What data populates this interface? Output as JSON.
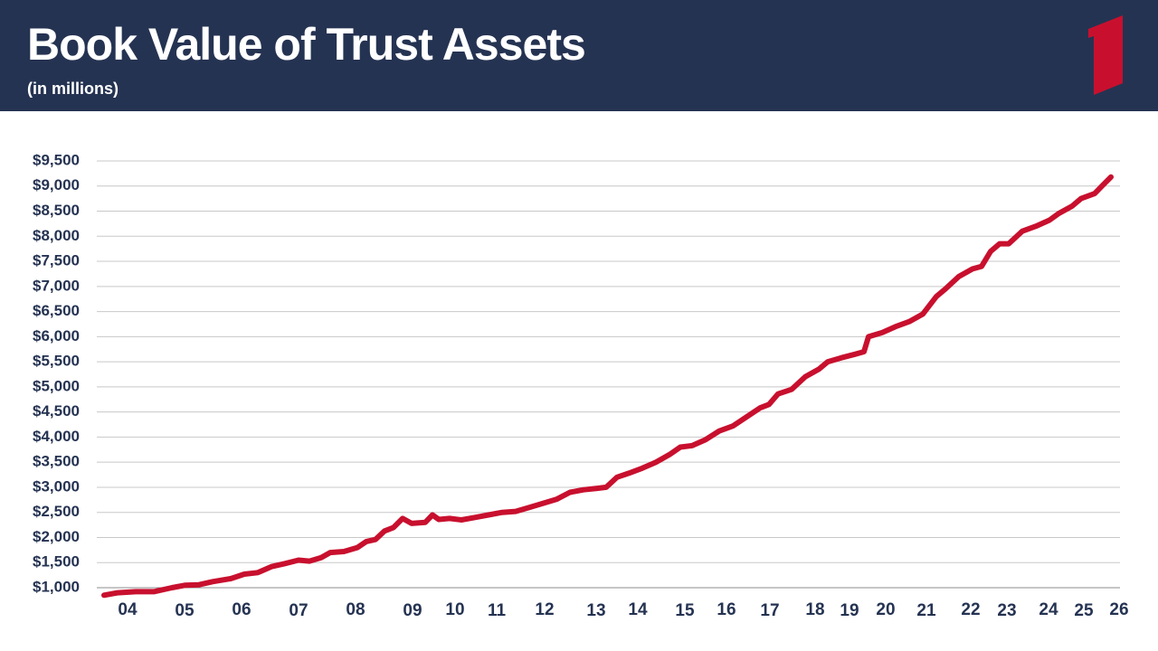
{
  "chart_data": {
    "type": "line",
    "title": "Book Value of Trust Assets",
    "subtitle": "(in millions)",
    "xlim": [
      0,
      1131
    ],
    "xticks": [
      {
        "value": 34,
        "label": "04"
      },
      {
        "value": 97,
        "label": "05"
      },
      {
        "value": 160,
        "label": "06"
      },
      {
        "value": 223,
        "label": "07"
      },
      {
        "value": 286,
        "label": "08"
      },
      {
        "value": 349,
        "label": "09"
      },
      {
        "value": 396,
        "label": "10"
      },
      {
        "value": 442,
        "label": "11"
      },
      {
        "value": 495,
        "label": "12"
      },
      {
        "value": 552,
        "label": "13"
      },
      {
        "value": 598,
        "label": "14"
      },
      {
        "value": 650,
        "label": "15"
      },
      {
        "value": 696,
        "label": "16"
      },
      {
        "value": 744,
        "label": "17"
      },
      {
        "value": 794,
        "label": "18"
      },
      {
        "value": 832,
        "label": "19"
      },
      {
        "value": 872,
        "label": "20"
      },
      {
        "value": 917,
        "label": "21"
      },
      {
        "value": 966,
        "label": "22"
      },
      {
        "value": 1006,
        "label": "23"
      },
      {
        "value": 1052,
        "label": "24"
      },
      {
        "value": 1091,
        "label": "25"
      },
      {
        "value": 1130,
        "label": "26"
      }
    ],
    "ylim": [
      1000,
      9500
    ],
    "yticks": [
      {
        "value": 1000,
        "label": "$1,000"
      },
      {
        "value": 1500,
        "label": "$1,500"
      },
      {
        "value": 2000,
        "label": "$2,000"
      },
      {
        "value": 2500,
        "label": "$2,500"
      },
      {
        "value": 3000,
        "label": "$3,000"
      },
      {
        "value": 3500,
        "label": "$3,500"
      },
      {
        "value": 4000,
        "label": "$4,000"
      },
      {
        "value": 4500,
        "label": "$4,500"
      },
      {
        "value": 5000,
        "label": "$5,000"
      },
      {
        "value": 5500,
        "label": "$5,500"
      },
      {
        "value": 6000,
        "label": "$6,000"
      },
      {
        "value": 6500,
        "label": "$6,500"
      },
      {
        "value": 7000,
        "label": "$7,000"
      },
      {
        "value": 7500,
        "label": "$7,500"
      },
      {
        "value": 8000,
        "label": "$8,000"
      },
      {
        "value": 8500,
        "label": "$8,500"
      },
      {
        "value": 9000,
        "label": "$9,000"
      },
      {
        "value": 9500,
        "label": "$9,500"
      }
    ],
    "grid": true,
    "series": [
      {
        "color": "#c8102e",
        "x": [
          8,
          23,
          43,
          63,
          83,
          98,
          113,
          128,
          148,
          163,
          178,
          193,
          208,
          223,
          235,
          248,
          258,
          273,
          288,
          298,
          308,
          318,
          328,
          338,
          348,
          363,
          371,
          378,
          390,
          403,
          418,
          433,
          448,
          463,
          478,
          493,
          508,
          523,
          538,
          553,
          563,
          575,
          588,
          603,
          618,
          633,
          645,
          658,
          673,
          688,
          703,
          718,
          733,
          743,
          753,
          768,
          783,
          798,
          808,
          823,
          838,
          848,
          853,
          868,
          883,
          898,
          913,
          928,
          938,
          953,
          968,
          978,
          988,
          998,
          1008,
          1023,
          1038,
          1053,
          1063,
          1078,
          1088,
          1103,
          1111,
          1121
        ],
        "values": [
          850,
          900,
          920,
          920,
          1000,
          1050,
          1060,
          1120,
          1180,
          1270,
          1300,
          1420,
          1480,
          1550,
          1530,
          1600,
          1700,
          1720,
          1800,
          1920,
          1960,
          2130,
          2200,
          2380,
          2280,
          2300,
          2450,
          2360,
          2380,
          2350,
          2400,
          2450,
          2500,
          2520,
          2600,
          2680,
          2760,
          2900,
          2950,
          2980,
          3000,
          3200,
          3280,
          3380,
          3500,
          3650,
          3800,
          3830,
          3950,
          4120,
          4220,
          4400,
          4580,
          4650,
          4860,
          4950,
          5200,
          5350,
          5500,
          5580,
          5650,
          5700,
          6000,
          6080,
          6200,
          6300,
          6450,
          6800,
          6950,
          7200,
          7350,
          7400,
          7700,
          7850,
          7850,
          8100,
          8200,
          8320,
          8450,
          8600,
          8750,
          8850,
          9000,
          9180
        ]
      }
    ]
  }
}
